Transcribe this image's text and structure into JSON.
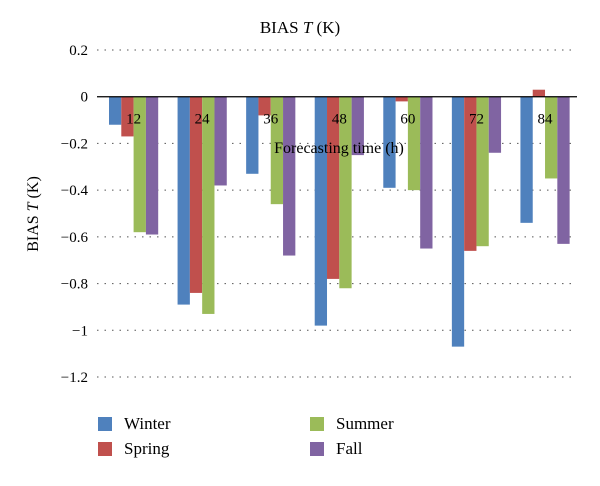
{
  "chart_data": {
    "type": "bar",
    "title": "BIAS T (K)",
    "title_parts": {
      "prefix": "BIAS ",
      "symbol": "T",
      "suffix": " (K)"
    },
    "ylabel": "BIAS T (K)",
    "ylabel_parts": {
      "prefix": "BIAS ",
      "symbol": "T",
      "suffix": " (K)"
    },
    "xlabel": "Forecasting time (h)",
    "categories": [
      "12",
      "24",
      "36",
      "48",
      "60",
      "72",
      "84"
    ],
    "ylim": [
      -1.2,
      0.2
    ],
    "yticks": [
      0.2,
      0,
      -0.2,
      -0.4,
      -0.6,
      -0.8,
      -1,
      -1.2
    ],
    "ytick_labels": [
      "0.2",
      "0",
      "−0.2",
      "−0.4",
      "−0.6",
      "−0.8",
      "−1",
      "−1.2"
    ],
    "grid": "horizontal dotted",
    "legend_position": "bottom",
    "series": [
      {
        "name": "Winter",
        "color": "#4f81bd",
        "values": [
          -0.12,
          -0.89,
          -0.33,
          -0.98,
          -0.39,
          -1.07,
          -0.54
        ]
      },
      {
        "name": "Spring",
        "color": "#c0504d",
        "values": [
          -0.17,
          -0.84,
          -0.08,
          -0.78,
          -0.02,
          -0.66,
          0.03
        ]
      },
      {
        "name": "Summer",
        "color": "#9bbb59",
        "values": [
          -0.58,
          -0.93,
          -0.46,
          -0.82,
          -0.4,
          -0.64,
          -0.35
        ]
      },
      {
        "name": "Fall",
        "color": "#8064a2",
        "values": [
          -0.59,
          -0.38,
          -0.68,
          -0.25,
          -0.65,
          -0.24,
          -0.63
        ]
      }
    ]
  }
}
